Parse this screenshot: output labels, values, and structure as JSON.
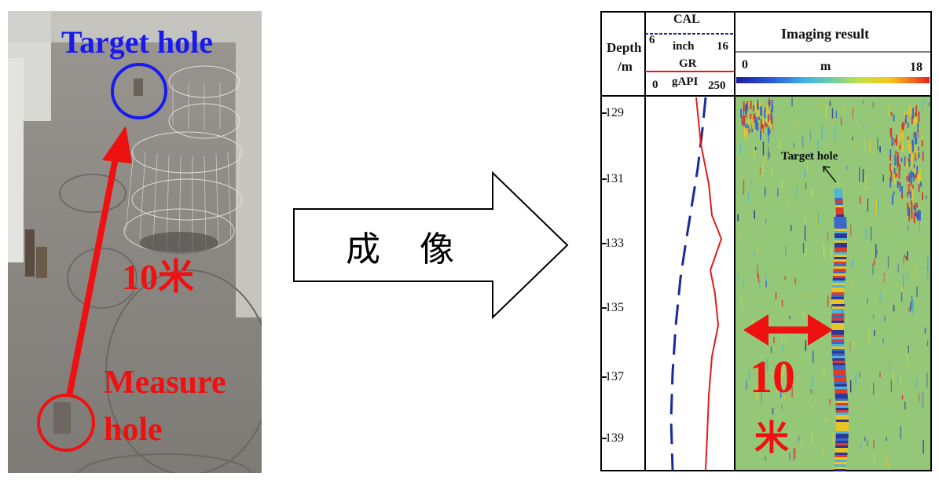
{
  "colors": {
    "red": "#ee1111",
    "blue": "#1a1aee",
    "cal_curve": "#1a2a9a",
    "gr_curve": "#e31b1b",
    "image_bg": "#94c878"
  },
  "photo": {
    "target_label": "Target hole",
    "distance_label": "10米",
    "measure_label_line1": "Measure",
    "measure_label_line2": "hole"
  },
  "arrow": {
    "text": "成 像"
  },
  "log": {
    "depth_title_line1": "Depth",
    "depth_title_line2": "/m",
    "cal": {
      "name": "CAL",
      "min": "6",
      "unit": "inch",
      "max": "16"
    },
    "gr": {
      "name": "GR",
      "min": "0",
      "unit": "gAPI",
      "max": "250"
    },
    "imaging": {
      "title": "Imaging result",
      "scale_min": "0",
      "scale_unit": "m",
      "scale_max": "18"
    },
    "depth_ticks": [
      "129",
      "131",
      "133",
      "135",
      "137",
      "139"
    ],
    "annotation_target": "Target hole",
    "annotation_distance_line1": "10",
    "annotation_distance_line2": "米"
  }
}
